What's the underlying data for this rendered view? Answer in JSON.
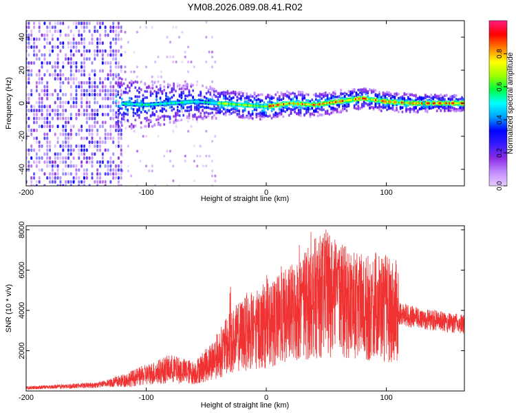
{
  "title": "YM08.2026.089.08.41.R02",
  "chart_data": [
    {
      "type": "heatmap",
      "title": "YM08.2026.089.08.41.R02",
      "xlabel": "Height of straight line (km)",
      "ylabel": "Frequency (Hz)",
      "xlim": [
        -200,
        165
      ],
      "ylim": [
        -50,
        50
      ],
      "x_ticks": [
        -200,
        -100,
        0,
        100
      ],
      "y_ticks": [
        -40,
        -20,
        0,
        20,
        40
      ],
      "colorbar": {
        "label": "Normalized spectral amplitude",
        "range": [
          0,
          1
        ],
        "ticks": [
          "0.0",
          "0.2",
          "0.4",
          "0.6",
          "0.8"
        ],
        "colors": [
          "#e6ccff",
          "#c28cff",
          "#8a2be2",
          "#3a1cff",
          "#0000ff",
          "#00a0ff",
          "#00ffff",
          "#00ff40",
          "#a0ff00",
          "#ffff00",
          "#ff8000",
          "#ff0000",
          "#ff1c80"
        ]
      },
      "ridge": {
        "points": [
          [
            -125,
            0
          ],
          [
            -100,
            -1
          ],
          [
            -80,
            0
          ],
          [
            -60,
            1
          ],
          [
            -40,
            0
          ],
          [
            -20,
            -1
          ],
          [
            0,
            -2
          ],
          [
            20,
            0
          ],
          [
            40,
            -1
          ],
          [
            60,
            1
          ],
          [
            80,
            3
          ],
          [
            100,
            1
          ],
          [
            120,
            0
          ],
          [
            140,
            0
          ],
          [
            165,
            0
          ]
        ],
        "peak_amplitude": 0.95
      },
      "noise_floor_region": {
        "x": [
          -200,
          -125
        ],
        "freq": [
          -50,
          50
        ],
        "amplitude": 0.3
      }
    },
    {
      "type": "line",
      "xlabel": "Height of straight line (km)",
      "ylabel": "SNR (10 * v/v)",
      "xlim": [
        -200,
        165
      ],
      "ylim": [
        0,
        8200
      ],
      "x_ticks": [
        -200,
        -100,
        0,
        100
      ],
      "y_ticks": [
        2000,
        4000,
        6000,
        8000
      ],
      "line_color": "#f03232",
      "envelope": [
        [
          -200,
          150
        ],
        [
          -180,
          200
        ],
        [
          -160,
          250
        ],
        [
          -140,
          300
        ],
        [
          -120,
          500
        ],
        [
          -100,
          800
        ],
        [
          -80,
          1100
        ],
        [
          -70,
          1000
        ],
        [
          -60,
          900
        ],
        [
          -50,
          1300
        ],
        [
          -40,
          1800
        ],
        [
          -30,
          2400
        ],
        [
          -20,
          2800
        ],
        [
          -10,
          3000
        ],
        [
          0,
          3200
        ],
        [
          10,
          3500
        ],
        [
          20,
          3800
        ],
        [
          30,
          4200
        ],
        [
          40,
          4600
        ],
        [
          50,
          4800
        ],
        [
          60,
          4500
        ],
        [
          70,
          4300
        ],
        [
          80,
          4000
        ],
        [
          90,
          4300
        ],
        [
          100,
          4100
        ],
        [
          110,
          3900
        ],
        [
          120,
          3700
        ],
        [
          130,
          3600
        ],
        [
          140,
          3500
        ],
        [
          150,
          3400
        ],
        [
          165,
          3300
        ]
      ],
      "peaks": [
        [
          -30,
          5400
        ],
        [
          -10,
          3800
        ],
        [
          30,
          5500
        ],
        [
          50,
          8100
        ],
        [
          60,
          7000
        ],
        [
          88,
          5800
        ],
        [
          100,
          5000
        ]
      ]
    }
  ]
}
